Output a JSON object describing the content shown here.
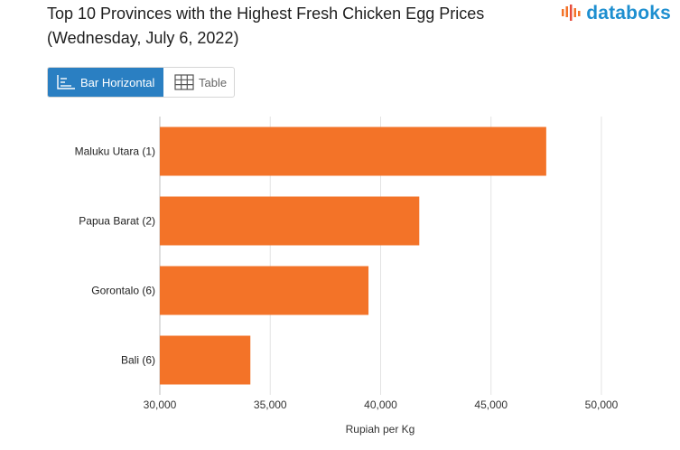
{
  "title_line1": "Top 10 Provinces with the Highest Fresh Chicken Egg Prices",
  "title_line2": "(Wednesday, July 6, 2022)",
  "brand": "databoks",
  "toggle": {
    "bar_label": "Bar Horizontal",
    "table_label": "Table"
  },
  "colors": {
    "bar": "#f37328",
    "accent": "#2a7fc2",
    "brand": "#1e8fd0",
    "grid": "#e3e3e3"
  },
  "chart_data": {
    "type": "bar",
    "orientation": "horizontal",
    "categories": [
      "Maluku Utara (1)",
      "Papua Barat (2)",
      "Gorontalo (6)",
      "Bali (6)"
    ],
    "values": [
      47500,
      41750,
      39450,
      34100
    ],
    "xlabel": "Rupiah per Kg",
    "xlim": [
      30000,
      50000
    ],
    "xticks": [
      30000,
      35000,
      40000,
      45000,
      50000
    ],
    "xtick_labels": [
      "30,000",
      "35,000",
      "40,000",
      "45,000",
      "50,000"
    ],
    "grid": true
  }
}
